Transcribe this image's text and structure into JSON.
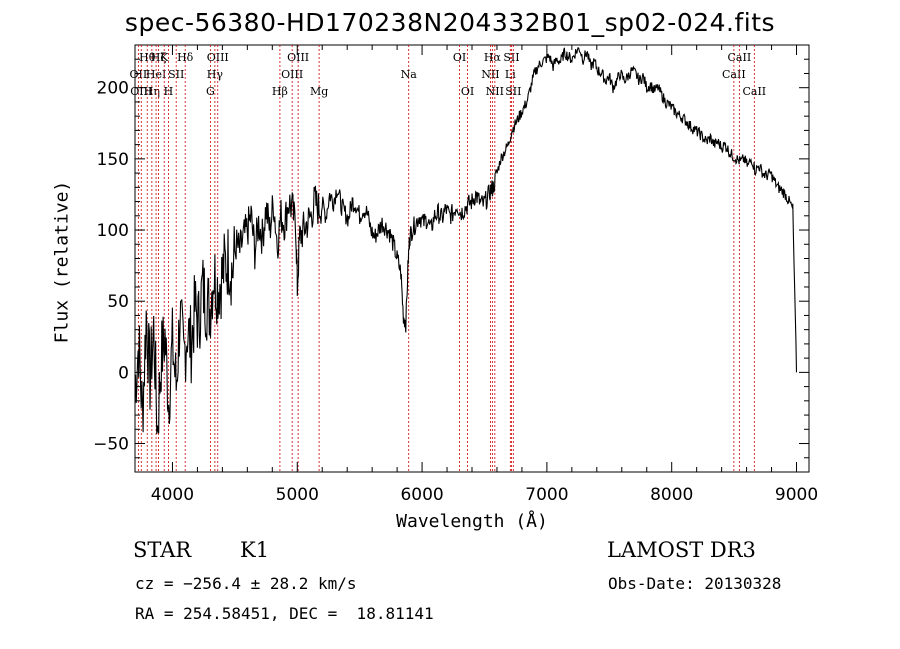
{
  "title": "spec-56380-HD170238N204332B01_sp02-024.fits",
  "footer": {
    "class_label": "STAR",
    "subclass": "K1",
    "survey": "LAMOST DR3",
    "cz": "cz = −256.4 ± 28.2 km/s",
    "obs_date": "Obs-Date: 20130328",
    "radec": "RA = 254.58451, DEC =  18.81141"
  },
  "chart_data": {
    "type": "line",
    "xlabel": "Wavelength (Å)",
    "ylabel": "Flux (relative)",
    "xlim": [
      3700,
      9100
    ],
    "ylim": [
      -70,
      230
    ],
    "xticks": [
      4000,
      5000,
      6000,
      7000,
      8000,
      9000
    ],
    "yticks": [
      -50,
      0,
      50,
      100,
      150,
      200
    ],
    "line_color": "#000000",
    "marker_color": "#cc0000",
    "series": [
      {
        "name": "spectrum",
        "x": [
          3700,
          3730,
          3760,
          3790,
          3820,
          3850,
          3880,
          3910,
          3940,
          3970,
          4000,
          4030,
          4060,
          4090,
          4120,
          4150,
          4180,
          4210,
          4240,
          4270,
          4300,
          4330,
          4360,
          4390,
          4420,
          4450,
          4480,
          4510,
          4540,
          4570,
          4600,
          4630,
          4660,
          4690,
          4720,
          4750,
          4780,
          4810,
          4840,
          4870,
          4900,
          4930,
          4960,
          4990,
          5000,
          5020,
          5050,
          5080,
          5110,
          5140,
          5170,
          5200,
          5230,
          5260,
          5290,
          5320,
          5350,
          5380,
          5410,
          5440,
          5470,
          5500,
          5530,
          5560,
          5590,
          5620,
          5650,
          5680,
          5710,
          5740,
          5770,
          5800,
          5830,
          5850,
          5870,
          5890,
          5900,
          5920,
          5950,
          5980,
          6010,
          6040,
          6070,
          6100,
          6130,
          6160,
          6190,
          6220,
          6250,
          6280,
          6310,
          6340,
          6370,
          6400,
          6430,
          6460,
          6490,
          6520,
          6550,
          6570,
          6600,
          6630,
          6660,
          6690,
          6720,
          6750,
          6780,
          6810,
          6840,
          6870,
          6900,
          6930,
          6960,
          6990,
          7020,
          7050,
          7080,
          7110,
          7140,
          7170,
          7200,
          7230,
          7260,
          7290,
          7320,
          7350,
          7380,
          7410,
          7440,
          7470,
          7500,
          7530,
          7560,
          7590,
          7620,
          7650,
          7680,
          7710,
          7740,
          7770,
          7800,
          7830,
          7860,
          7890,
          7920,
          7950,
          7980,
          8010,
          8040,
          8070,
          8100,
          8130,
          8160,
          8190,
          8220,
          8250,
          8280,
          8310,
          8340,
          8370,
          8400,
          8430,
          8460,
          8490,
          8520,
          8550,
          8580,
          8610,
          8640,
          8670,
          8700,
          8730,
          8760,
          8790,
          8820,
          8850,
          8880,
          8910,
          8940,
          8970,
          9000
        ],
        "y": [
          -10,
          20,
          -30,
          40,
          -5,
          30,
          -40,
          10,
          25,
          -20,
          20,
          -10,
          40,
          10,
          30,
          20,
          45,
          35,
          60,
          50,
          45,
          70,
          60,
          65,
          75,
          80,
          70,
          90,
          85,
          95,
          100,
          110,
          85,
          105,
          95,
          115,
          100,
          120,
          90,
          110,
          105,
          120,
          115,
          100,
          60,
          95,
          100,
          105,
          110,
          120,
          115,
          118,
          110,
          125,
          120,
          130,
          118,
          112,
          108,
          120,
          118,
          110,
          115,
          112,
          100,
          95,
          100,
          105,
          102,
          98,
          90,
          80,
          70,
          40,
          35,
          80,
          95,
          100,
          105,
          110,
          105,
          108,
          100,
          110,
          112,
          108,
          115,
          110,
          112,
          118,
          112,
          115,
          118,
          120,
          125,
          120,
          118,
          122,
          128,
          130,
          140,
          150,
          155,
          160,
          170,
          175,
          180,
          185,
          190,
          200,
          210,
          215,
          218,
          220,
          222,
          215,
          220,
          218,
          225,
          222,
          220,
          225,
          228,
          220,
          225,
          215,
          218,
          212,
          210,
          205,
          208,
          200,
          205,
          210,
          205,
          208,
          212,
          210,
          205,
          208,
          200,
          202,
          198,
          200,
          195,
          190,
          188,
          185,
          182,
          180,
          178,
          175,
          172,
          170,
          168,
          165,
          162,
          165,
          160,
          162,
          158,
          160,
          155,
          152,
          150,
          148,
          150,
          145,
          150,
          142,
          145,
          140,
          138,
          140,
          135,
          130,
          128,
          125,
          120,
          115,
          0
        ]
      }
    ],
    "markers": [
      {
        "x": 3727,
        "label": "OII",
        "row": 1
      },
      {
        "x": 3750,
        "label": "OIII",
        "row": 2
      },
      {
        "x": 3798,
        "label": "Hθ",
        "row": 0
      },
      {
        "x": 3835,
        "label": "Hη",
        "row": 2
      },
      {
        "x": 3869,
        "label": "HeI",
        "row": 1
      },
      {
        "x": 3889,
        "label": "Hζ",
        "row": 0
      },
      {
        "x": 3934,
        "label": "K",
        "row": 0
      },
      {
        "x": 3968,
        "label": "H",
        "row": 2
      },
      {
        "x": 4030,
        "label": "SII",
        "row": 1
      },
      {
        "x": 4102,
        "label": "Hδ",
        "row": 0
      },
      {
        "x": 4304,
        "label": "G",
        "row": 2
      },
      {
        "x": 4340,
        "label": "Hγ",
        "row": 1
      },
      {
        "x": 4363,
        "label": "OIII",
        "row": 0
      },
      {
        "x": 4861,
        "label": "Hβ",
        "row": 2
      },
      {
        "x": 4959,
        "label": "OIII",
        "row": 1
      },
      {
        "x": 5007,
        "label": "OIII",
        "row": 0
      },
      {
        "x": 5175,
        "label": "Mg",
        "row": 2
      },
      {
        "x": 5893,
        "label": "Na",
        "row": 1
      },
      {
        "x": 6300,
        "label": "OI",
        "row": 0
      },
      {
        "x": 6364,
        "label": "OI",
        "row": 2
      },
      {
        "x": 6548,
        "label": "NII",
        "row": 1
      },
      {
        "x": 6563,
        "label": "Hα",
        "row": 0
      },
      {
        "x": 6583,
        "label": "NII",
        "row": 2
      },
      {
        "x": 6707,
        "label": "Li",
        "row": 1
      },
      {
        "x": 6716,
        "label": "SII",
        "row": 0
      },
      {
        "x": 6731,
        "label": "SII",
        "row": 2
      },
      {
        "x": 8498,
        "label": "CaII",
        "row": 1
      },
      {
        "x": 8542,
        "label": "CaII",
        "row": 0
      },
      {
        "x": 8662,
        "label": "CaII",
        "row": 2
      }
    ]
  }
}
